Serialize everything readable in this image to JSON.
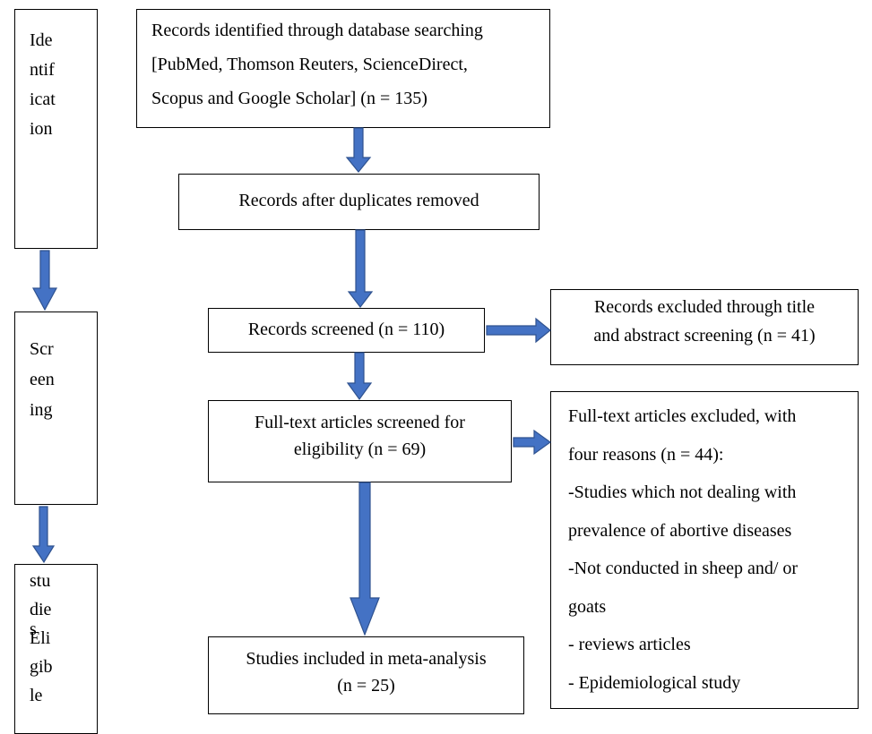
{
  "stages": {
    "identification": [
      "Ide",
      "ntif",
      "icat",
      "ion"
    ],
    "screening": [
      "Scr",
      "een",
      "ing"
    ],
    "eligible": {
      "overlap": "s",
      "lines": [
        "stu",
        "die",
        "Eli",
        "gib",
        "le"
      ]
    }
  },
  "boxes": {
    "identified": [
      "Records identified through database searching",
      "[PubMed, Thomson Reuters, ScienceDirect,",
      "Scopus and Google Scholar] (n =  135)"
    ],
    "duplicates": "Records after duplicates removed",
    "screened": "Records screened (n = 110)",
    "excluded_title": [
      "Records excluded through title",
      "and abstract screening (n = 41)"
    ],
    "fulltext": [
      "Full-text articles screened for",
      "eligibility (n = 69)"
    ],
    "fulltext_excluded": [
      "Full-text articles excluded, with",
      "four reasons (n = 44):",
      "-Studies which not dealing with",
      "prevalence of abortive diseases",
      "-Not conducted in sheep and/ or",
      "goats",
      "- reviews articles",
      "- Epidemiological study"
    ],
    "included": [
      "Studies included in meta-analysis",
      "(n = 25)"
    ]
  },
  "colors": {
    "arrow_fill": "#4472c4",
    "arrow_stroke": "#2f528f",
    "border": "#000000"
  }
}
